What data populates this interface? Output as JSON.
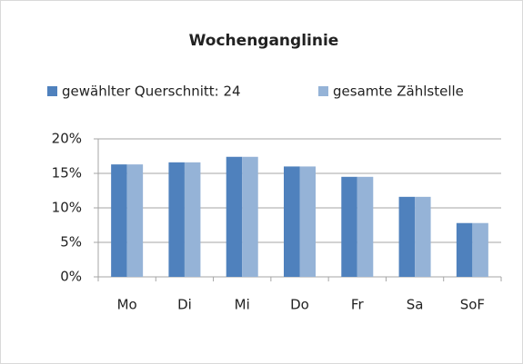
{
  "chart_data": {
    "type": "bar",
    "title": "Wochenganglinie",
    "categories": [
      "Mo",
      "Di",
      "Mi",
      "Do",
      "Fr",
      "Sa",
      "SoF"
    ],
    "series": [
      {
        "name": "gewählter Querschnitt: 24",
        "color": "#4f81bd",
        "values": [
          16.3,
          16.6,
          17.4,
          16.0,
          14.5,
          11.6,
          7.8
        ]
      },
      {
        "name": "gesamte Zählstelle",
        "color": "#95b3d7",
        "values": [
          16.3,
          16.6,
          17.4,
          16.0,
          14.5,
          11.6,
          7.8
        ]
      }
    ],
    "ylim": [
      0,
      20
    ],
    "yticks": [
      {
        "value": 0,
        "label": "0%"
      },
      {
        "value": 5,
        "label": "5%"
      },
      {
        "value": 10,
        "label": "10%"
      },
      {
        "value": 15,
        "label": "15%"
      },
      {
        "value": 20,
        "label": "20%"
      }
    ],
    "grid": true,
    "legend": "top"
  }
}
